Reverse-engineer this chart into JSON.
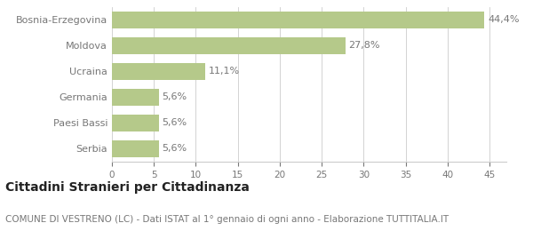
{
  "categories": [
    "Bosnia-Erzegovina",
    "Moldova",
    "Ucraina",
    "Germania",
    "Paesi Bassi",
    "Serbia"
  ],
  "values": [
    44.4,
    27.8,
    11.1,
    5.6,
    5.6,
    5.6
  ],
  "labels": [
    "44,4%",
    "27,8%",
    "11,1%",
    "5,6%",
    "5,6%",
    "5,6%"
  ],
  "bar_color": "#b5c98a",
  "background_color": "#ffffff",
  "grid_color": "#cccccc",
  "text_color": "#777777",
  "xlim": [
    0,
    47
  ],
  "xticks": [
    0,
    5,
    10,
    15,
    20,
    25,
    30,
    35,
    40,
    45
  ],
  "title": "Cittadini Stranieri per Cittadinanza",
  "subtitle": "COMUNE DI VESTRENO (LC) - Dati ISTAT al 1° gennaio di ogni anno - Elaborazione TUTTITALIA.IT",
  "title_fontsize": 10,
  "subtitle_fontsize": 7.5,
  "label_fontsize": 8,
  "tick_fontsize": 7.5,
  "bar_height": 0.65
}
